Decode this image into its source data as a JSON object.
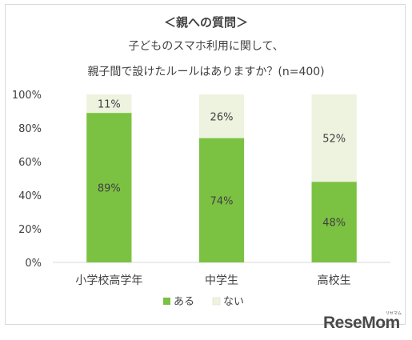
{
  "chart_data": {
    "type": "bar",
    "stacked": true,
    "title": "＜親への質問＞",
    "subtitle_lines": [
      "子どものスマホ利用に関して、",
      "親子間で設けたルールはありますか？(n=400)"
    ],
    "categories": [
      "小学校高学年",
      "中学生",
      "高校生"
    ],
    "series": [
      {
        "name": "ある",
        "values": [
          89,
          74,
          48
        ],
        "labels": [
          "89%",
          "74%",
          "48%"
        ],
        "color": "#7cc242"
      },
      {
        "name": "ない",
        "values": [
          11,
          26,
          52
        ],
        "labels": [
          "11%",
          "26%",
          "52%"
        ],
        "color": "#eef3e0"
      }
    ],
    "yticks": [
      "0%",
      "20%",
      "40%",
      "60%",
      "80%",
      "100%"
    ],
    "ylim": [
      0,
      100
    ],
    "grid": false,
    "legend_position": "bottom"
  },
  "watermark": {
    "text": "ReseMom",
    "kana": "リセマム"
  },
  "colors": {
    "text": "#404040",
    "axis": "#d9d9d9"
  }
}
